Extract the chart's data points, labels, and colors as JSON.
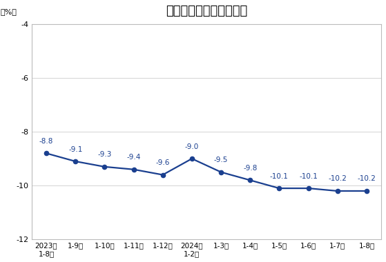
{
  "title": "全国房地产开发投资增速",
  "ylabel": "（%）",
  "x_labels": [
    "2023年\n1-8月",
    "1-9月",
    "1-10月",
    "1-11月",
    "1-12月",
    "2024年\n1-2月",
    "1-3月",
    "1-4月",
    "1-5月",
    "1-6月",
    "1-7月",
    "1-8月"
  ],
  "y_values": [
    -8.8,
    -9.1,
    -9.3,
    -9.4,
    -9.6,
    -9.0,
    -9.5,
    -9.8,
    -10.1,
    -10.1,
    -10.2,
    -10.2
  ],
  "data_labels": [
    "-8.8",
    "-9.1",
    "-9.3",
    "-9.4",
    "-9.6",
    "-9.0",
    "-9.5",
    "-9.8",
    "-10.1",
    "-10.1",
    "-10.2",
    "-10.2"
  ],
  "line_color": "#1a3f8f",
  "marker_color": "#1a3f8f",
  "background_color": "#ffffff",
  "plot_bg_color": "#ffffff",
  "ylim": [
    -12,
    -4
  ],
  "yticks": [
    -12,
    -10,
    -8,
    -6,
    -4
  ],
  "ytick_labels": [
    "-12",
    "-10",
    "-8",
    "-6",
    "-4"
  ],
  "title_fontsize": 13,
  "label_fontsize": 7.5,
  "tick_fontsize": 8.0
}
